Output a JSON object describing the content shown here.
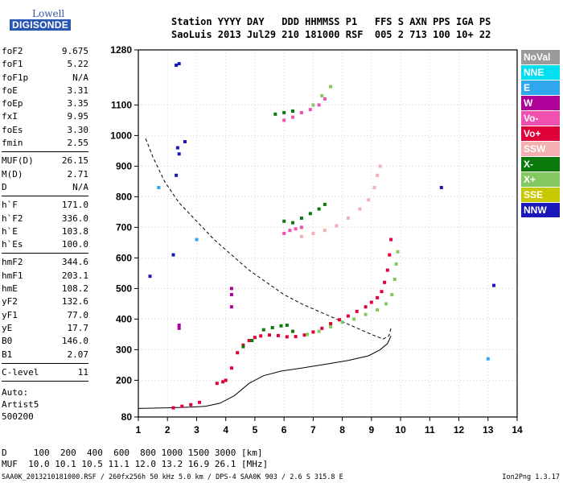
{
  "logo": {
    "line1": "Lowell",
    "line2": "DIGISONDE"
  },
  "header": {
    "line1": "Station YYYY DAY   DDD HHMMSS P1   FFS S AXN PPS IGA PS",
    "line2": "SaoLuis 2013 Jul29 210 181000 RSF  005 2 713 100 10+ 22"
  },
  "params": {
    "group1": [
      {
        "label": "foF2",
        "value": "9.675"
      },
      {
        "label": "foF1",
        "value": "5.22"
      },
      {
        "label": "foF1p",
        "value": "N/A"
      },
      {
        "label": "foE",
        "value": "3.31"
      },
      {
        "label": "foEp",
        "value": "3.35"
      },
      {
        "label": "fxI",
        "value": "9.95"
      },
      {
        "label": "foEs",
        "value": "3.30"
      },
      {
        "label": "fmin",
        "value": "2.55"
      }
    ],
    "group2": [
      {
        "label": "MUF(D)",
        "value": "26.15"
      },
      {
        "label": "M(D)",
        "value": "2.71"
      },
      {
        "label": "D",
        "value": "N/A"
      }
    ],
    "group3": [
      {
        "label": "h`F",
        "value": "171.0"
      },
      {
        "label": "h`F2",
        "value": "336.0"
      },
      {
        "label": "h`E",
        "value": "103.8"
      },
      {
        "label": "h`Es",
        "value": "100.0"
      }
    ],
    "group4": [
      {
        "label": "hmF2",
        "value": "344.6"
      },
      {
        "label": "hmF1",
        "value": "203.1"
      },
      {
        "label": "hmE",
        "value": "108.2"
      },
      {
        "label": "yF2",
        "value": "132.6"
      },
      {
        "label": "yF1",
        "value": "77.0"
      },
      {
        "label": "yE",
        "value": "17.7"
      },
      {
        "label": "B0",
        "value": "146.0"
      },
      {
        "label": "B1",
        "value": "2.07"
      }
    ],
    "group5": [
      {
        "label": "C-level",
        "value": "11"
      }
    ],
    "auto": [
      "Auto:",
      "Artist5",
      "500200"
    ]
  },
  "legend": [
    {
      "label": "NoVal",
      "color": "#9a9a9a"
    },
    {
      "label": "NNE",
      "color": "#00e0f0"
    },
    {
      "label": "E",
      "color": "#2fa8f0"
    },
    {
      "label": "W",
      "color": "#b0009a"
    },
    {
      "label": "Vo-",
      "color": "#f050b0"
    },
    {
      "label": "Vo+",
      "color": "#e0003a"
    },
    {
      "label": "SSW",
      "color": "#f4b0b0"
    },
    {
      "label": "X-",
      "color": "#0a7a0a"
    },
    {
      "label": "X+",
      "color": "#84c860"
    },
    {
      "label": "SSE",
      "color": "#c8c800"
    },
    {
      "label": "NNW",
      "color": "#1a18b8"
    }
  ],
  "bottom": {
    "line1": "D     100  200  400  600  800 1000 1500 3000 [km]",
    "line2": "MUF  10.0 10.1 10.5 11.1 12.0 13.2 16.9 26.1 [MHz]"
  },
  "footer": "SAA0K_2013210181000.RSF / 260fx256h 50 kHz 5.0 km / DPS-4 SAA0K 903 / 2.6 S 315.8 E",
  "version": "Ion2Png 1.3.17",
  "chart_data": {
    "type": "scatter",
    "xlim": [
      1,
      14
    ],
    "ylim": [
      80,
      1280
    ],
    "x_ticks": [
      "1",
      "2",
      "3",
      "4",
      "5",
      "6",
      "7",
      "8",
      "9",
      "10",
      "11",
      "12",
      "13",
      "14"
    ],
    "y_ticks": [
      "80",
      "200",
      "300",
      "400",
      "500",
      "600",
      "700",
      "800",
      "900",
      "1000",
      "1100",
      "1280"
    ],
    "grid": true,
    "series": [
      {
        "name": "Vo+",
        "color": "#e0003a",
        "points": [
          [
            3.7,
            190
          ],
          [
            3.9,
            195
          ],
          [
            4.0,
            200
          ],
          [
            4.2,
            240
          ],
          [
            4.4,
            290
          ],
          [
            4.6,
            315
          ],
          [
            4.8,
            330
          ],
          [
            5.0,
            340
          ],
          [
            5.2,
            345
          ],
          [
            5.5,
            348
          ],
          [
            5.8,
            346
          ],
          [
            6.1,
            342
          ],
          [
            6.4,
            343
          ],
          [
            6.7,
            348
          ],
          [
            7.0,
            358
          ],
          [
            7.3,
            370
          ],
          [
            7.6,
            385
          ],
          [
            7.9,
            398
          ],
          [
            8.2,
            410
          ],
          [
            8.5,
            425
          ],
          [
            8.8,
            440
          ],
          [
            9.0,
            455
          ],
          [
            9.2,
            470
          ],
          [
            9.35,
            490
          ],
          [
            9.45,
            520
          ],
          [
            9.55,
            560
          ],
          [
            9.62,
            610
          ],
          [
            9.67,
            660
          ],
          [
            2.2,
            110
          ],
          [
            2.5,
            115
          ],
          [
            2.8,
            120
          ],
          [
            3.1,
            128
          ]
        ]
      },
      {
        "name": "Vo-",
        "color": "#f050b0",
        "points": [
          [
            6.0,
            680
          ],
          [
            6.2,
            690
          ],
          [
            6.4,
            695
          ],
          [
            6.6,
            700
          ],
          [
            6.0,
            1050
          ],
          [
            6.3,
            1060
          ],
          [
            6.6,
            1075
          ],
          [
            6.9,
            1085
          ],
          [
            7.2,
            1100
          ],
          [
            7.4,
            1120
          ]
        ]
      },
      {
        "name": "X-",
        "color": "#0a7a0a",
        "points": [
          [
            5.3,
            365
          ],
          [
            5.6,
            372
          ],
          [
            5.9,
            378
          ],
          [
            6.1,
            380
          ],
          [
            6.3,
            360
          ],
          [
            4.6,
            310
          ],
          [
            4.9,
            330
          ],
          [
            6.0,
            720
          ],
          [
            6.3,
            715
          ],
          [
            6.6,
            730
          ],
          [
            6.9,
            745
          ],
          [
            7.2,
            760
          ],
          [
            7.4,
            775
          ],
          [
            5.7,
            1070
          ],
          [
            6.0,
            1075
          ],
          [
            6.3,
            1080
          ]
        ]
      },
      {
        "name": "X+",
        "color": "#84c860",
        "points": [
          [
            6.8,
            350
          ],
          [
            7.2,
            360
          ],
          [
            7.6,
            375
          ],
          [
            8.0,
            390
          ],
          [
            8.4,
            400
          ],
          [
            8.8,
            415
          ],
          [
            9.2,
            430
          ],
          [
            9.5,
            450
          ],
          [
            9.7,
            480
          ],
          [
            9.8,
            530
          ],
          [
            9.85,
            580
          ],
          [
            9.9,
            620
          ],
          [
            7.0,
            1100
          ],
          [
            7.3,
            1130
          ],
          [
            7.6,
            1160
          ]
        ]
      },
      {
        "name": "SSW",
        "color": "#f4b0b0",
        "points": [
          [
            6.6,
            670
          ],
          [
            7.0,
            680
          ],
          [
            7.4,
            690
          ],
          [
            7.8,
            705
          ],
          [
            8.2,
            730
          ],
          [
            8.6,
            760
          ],
          [
            8.9,
            790
          ],
          [
            9.1,
            830
          ],
          [
            9.2,
            870
          ],
          [
            9.3,
            900
          ]
        ]
      },
      {
        "name": "NNW",
        "color": "#1a18b8",
        "points": [
          [
            2.3,
            1230
          ],
          [
            2.4,
            1235
          ],
          [
            2.35,
            960
          ],
          [
            2.4,
            940
          ],
          [
            2.6,
            980
          ],
          [
            2.3,
            870
          ],
          [
            2.2,
            610
          ],
          [
            11.4,
            830
          ],
          [
            13.2,
            510
          ],
          [
            1.4,
            540
          ]
        ]
      },
      {
        "name": "W",
        "color": "#b0009a",
        "points": [
          [
            4.2,
            500
          ],
          [
            4.2,
            480
          ],
          [
            4.2,
            440
          ],
          [
            2.4,
            380
          ],
          [
            2.4,
            370
          ]
        ]
      },
      {
        "name": "E",
        "color": "#2fa8f0",
        "points": [
          [
            1.7,
            830
          ],
          [
            3.0,
            660
          ],
          [
            13.0,
            270
          ]
        ]
      }
    ],
    "lines": [
      {
        "name": "profile_dashed",
        "style": "dashed",
        "points": [
          [
            1.25,
            990
          ],
          [
            1.5,
            930
          ],
          [
            1.9,
            850
          ],
          [
            2.4,
            780
          ],
          [
            3.0,
            720
          ],
          [
            3.6,
            660
          ],
          [
            4.2,
            610
          ],
          [
            4.8,
            560
          ],
          [
            5.4,
            520
          ],
          [
            6.0,
            480
          ],
          [
            6.6,
            450
          ],
          [
            7.2,
            425
          ],
          [
            7.8,
            400
          ],
          [
            8.4,
            375
          ],
          [
            9.0,
            350
          ],
          [
            9.4,
            335
          ],
          [
            9.6,
            345
          ],
          [
            9.67,
            370
          ]
        ]
      },
      {
        "name": "profile_solid",
        "style": "solid",
        "points": [
          [
            1.0,
            108
          ],
          [
            2.0,
            110
          ],
          [
            2.8,
            112
          ],
          [
            3.3,
            115
          ],
          [
            3.8,
            125
          ],
          [
            4.3,
            150
          ],
          [
            4.8,
            190
          ],
          [
            5.3,
            215
          ],
          [
            5.9,
            230
          ],
          [
            6.6,
            240
          ],
          [
            7.4,
            252
          ],
          [
            8.2,
            265
          ],
          [
            8.9,
            280
          ],
          [
            9.3,
            300
          ],
          [
            9.55,
            320
          ],
          [
            9.67,
            345
          ]
        ]
      }
    ]
  }
}
